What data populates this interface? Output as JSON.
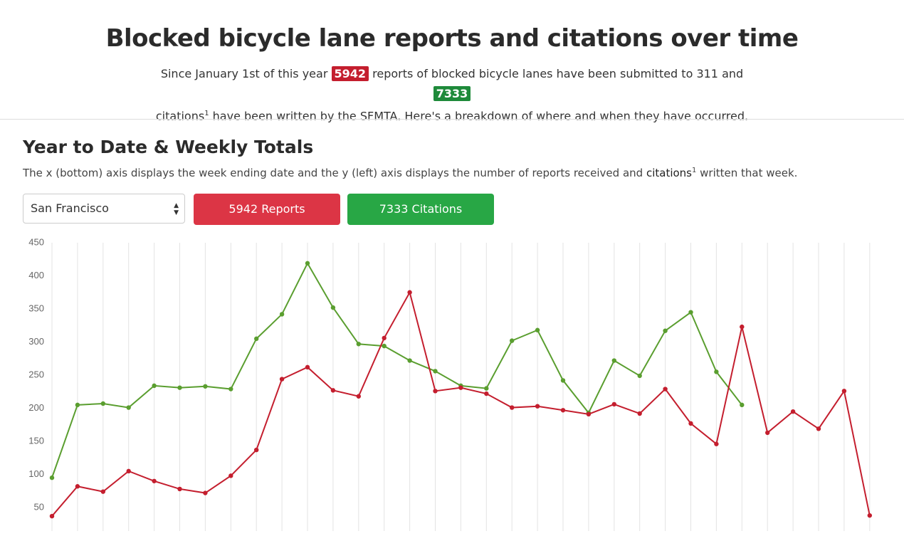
{
  "header": {
    "title": "Blocked bicycle lane reports and citations over time",
    "intro": "Since January 1st of this year",
    "reports_count": 5942,
    "middle": "reports of blocked bicycle lanes have been submitted to 311 and",
    "citations_count": 7333,
    "citations_word": "citations",
    "footnote_mark": "1",
    "ending": "have been written by the SFMTA. Here's a breakdown of where and when they have occurred."
  },
  "section": {
    "heading": "Year to Date & Weekly Totals",
    "description_start": "The x (bottom) axis displays the week ending date and the y (left) axis displays the number of reports received and",
    "description_bold": "citations",
    "footnote_mark": "1",
    "description_end": "written that week."
  },
  "controls": {
    "select_value": "San Francisco",
    "reports_button": "5942 Reports",
    "citations_button": "7333 Citations"
  },
  "chart_data": {
    "type": "line",
    "categories": [
      null,
      null,
      null,
      null,
      null,
      null,
      null,
      null,
      null,
      null,
      null,
      null,
      null,
      null,
      null,
      null,
      null,
      null,
      null,
      null,
      null,
      null,
      null,
      null,
      null,
      null,
      null,
      null,
      null,
      null,
      null,
      null,
      null
    ],
    "series": [
      {
        "color": "#5a9e2f",
        "values": [
          95,
          205,
          207,
          201,
          234,
          231,
          233,
          229,
          305,
          342,
          419,
          352,
          297,
          294,
          272,
          256,
          234,
          230,
          302,
          318,
          242,
          193,
          272,
          249,
          317,
          345,
          255,
          205,
          null,
          null,
          null,
          null,
          null
        ]
      },
      {
        "color": "#c41e2e",
        "values": [
          37,
          82,
          74,
          105,
          90,
          78,
          72,
          98,
          137,
          244,
          262,
          227,
          218,
          306,
          375,
          226,
          231,
          222,
          201,
          203,
          197,
          191,
          206,
          192,
          229,
          177,
          146,
          323,
          163,
          195,
          169,
          226,
          38
        ]
      }
    ],
    "ylim": [
      36,
      450
    ],
    "yticks": [
      50,
      100,
      150,
      200,
      250,
      300,
      350,
      400,
      450
    ],
    "grid": "vertical"
  }
}
